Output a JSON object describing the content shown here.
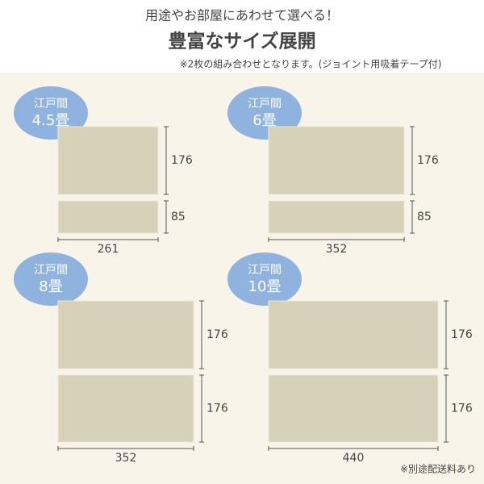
{
  "header": {
    "subtitle": "用途やお部屋にあわせて選べる！",
    "title": "豊富なサイズ展開",
    "note": "※2枚の組み合わせとなります。(ジョイント用吸着テープ付)"
  },
  "panels": [
    {
      "badge": [
        "江戸間",
        "4.5畳"
      ],
      "pieces": [
        "176",
        "85"
      ],
      "width": "261"
    },
    {
      "badge": [
        "江戸間",
        "6畳"
      ],
      "pieces": [
        "176",
        "85"
      ],
      "width": "352"
    },
    {
      "badge": [
        "江戸間",
        "8畳"
      ],
      "pieces": [
        "176",
        "176"
      ],
      "width": "352"
    },
    {
      "badge": [
        "江戸間",
        "10畳"
      ],
      "pieces": [
        "176",
        "176"
      ],
      "width": "440"
    }
  ],
  "footer": {
    "note": "※別途配送料あり"
  }
}
